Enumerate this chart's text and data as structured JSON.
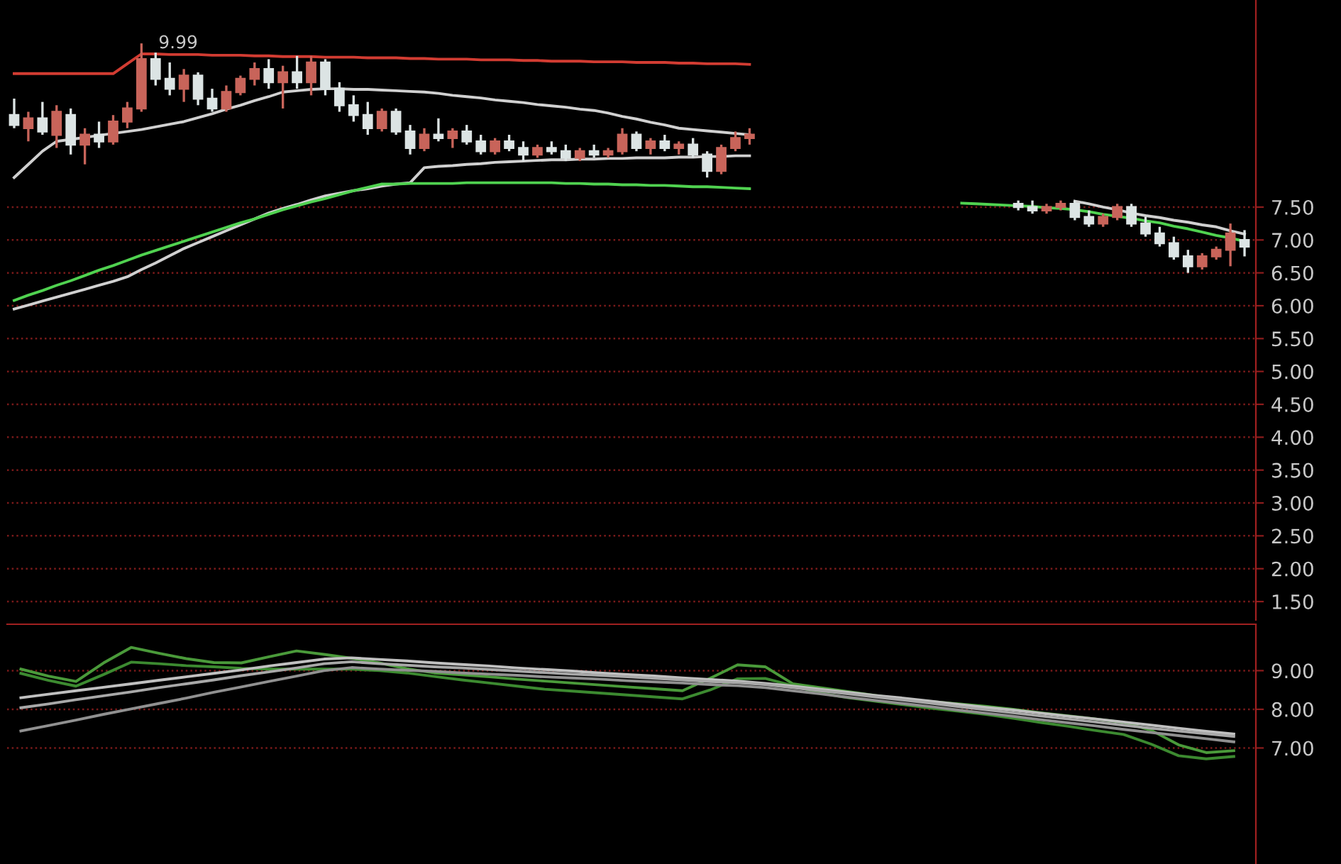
{
  "chart_data": [
    {
      "type": "candlestick",
      "categories": [
        null,
        null,
        null,
        null,
        null,
        null,
        null,
        null,
        null,
        null,
        null,
        null,
        null,
        null,
        null,
        null,
        null,
        null,
        null,
        null,
        null,
        null,
        null,
        null,
        null,
        null,
        null,
        null,
        null,
        null,
        null,
        null,
        null,
        null,
        null,
        null,
        null,
        null,
        null,
        null,
        null,
        null,
        null,
        null,
        null,
        null,
        null,
        null,
        null,
        null,
        null,
        null,
        null,
        null,
        null,
        null,
        null,
        null,
        null,
        null,
        null,
        null,
        null,
        null,
        null,
        null,
        null,
        null,
        null,
        null,
        null,
        null,
        null,
        null,
        null,
        null,
        null,
        null,
        null,
        null,
        null,
        null,
        null,
        null,
        null,
        null,
        null,
        null
      ],
      "ohlc": [
        [
          8.9,
          9.15,
          8.7,
          8.75
        ],
        [
          8.7,
          8.95,
          8.5,
          8.85
        ],
        [
          8.85,
          9.1,
          8.6,
          8.65
        ],
        [
          8.6,
          9.05,
          8.4,
          8.95
        ],
        [
          8.9,
          9.0,
          8.3,
          8.45
        ],
        [
          8.45,
          8.7,
          8.15,
          8.6
        ],
        [
          8.6,
          8.8,
          8.4,
          8.5
        ],
        [
          8.5,
          8.9,
          8.45,
          8.8
        ],
        [
          8.8,
          9.1,
          8.7,
          9.0
        ],
        [
          9.0,
          9.99,
          8.95,
          9.75
        ],
        [
          9.75,
          9.85,
          9.35,
          9.45
        ],
        [
          9.45,
          9.7,
          9.2,
          9.3
        ],
        [
          9.3,
          9.6,
          9.1,
          9.5
        ],
        [
          9.5,
          9.55,
          9.05,
          9.15
        ],
        [
          9.15,
          9.3,
          8.95,
          9.0
        ],
        [
          9.0,
          9.35,
          8.95,
          9.25
        ],
        [
          9.25,
          9.5,
          9.2,
          9.45
        ],
        [
          9.45,
          9.7,
          9.35,
          9.6
        ],
        [
          9.6,
          9.75,
          9.3,
          9.4
        ],
        [
          9.4,
          9.65,
          9.0,
          9.55
        ],
        [
          9.55,
          9.8,
          9.3,
          9.4
        ],
        [
          9.4,
          9.8,
          9.2,
          9.7
        ],
        [
          9.7,
          9.75,
          9.2,
          9.3
        ],
        [
          9.3,
          9.4,
          8.95,
          9.05
        ],
        [
          9.05,
          9.2,
          8.8,
          8.9
        ],
        [
          8.9,
          9.1,
          8.6,
          8.7
        ],
        [
          8.7,
          9.0,
          8.65,
          8.95
        ],
        [
          8.95,
          9.0,
          8.6,
          8.65
        ],
        [
          8.65,
          8.75,
          8.3,
          8.4
        ],
        [
          8.4,
          8.7,
          8.35,
          8.6
        ],
        [
          8.6,
          8.85,
          8.5,
          8.55
        ],
        [
          8.55,
          8.7,
          8.4,
          8.65
        ],
        [
          8.65,
          8.75,
          8.45,
          8.5
        ],
        [
          8.5,
          8.6,
          8.3,
          8.35
        ],
        [
          8.35,
          8.55,
          8.3,
          8.5
        ],
        [
          8.5,
          8.6,
          8.35,
          8.4
        ],
        [
          8.4,
          8.5,
          8.2,
          8.3
        ],
        [
          8.3,
          8.45,
          8.25,
          8.4
        ],
        [
          8.4,
          8.5,
          8.3,
          8.35
        ],
        [
          8.35,
          8.45,
          8.2,
          8.25
        ],
        [
          8.25,
          8.4,
          8.2,
          8.35
        ],
        [
          8.35,
          8.45,
          8.25,
          8.3
        ],
        [
          8.3,
          8.4,
          8.25,
          8.35
        ],
        [
          8.35,
          8.7,
          8.3,
          8.6
        ],
        [
          8.6,
          8.65,
          8.35,
          8.4
        ],
        [
          8.4,
          8.55,
          8.3,
          8.5
        ],
        [
          8.5,
          8.6,
          8.35,
          8.4
        ],
        [
          8.4,
          8.5,
          8.3,
          8.45
        ],
        [
          8.45,
          8.55,
          8.25,
          8.3
        ],
        [
          8.3,
          8.35,
          7.95,
          8.05
        ],
        [
          8.05,
          8.45,
          8.0,
          8.4
        ],
        [
          8.4,
          8.65,
          8.35,
          8.55
        ],
        [
          8.55,
          8.7,
          8.45,
          8.6
        ],
        null,
        null,
        null,
        null,
        null,
        null,
        null,
        null,
        null,
        null,
        null,
        null,
        null,
        null,
        null,
        null,
        null,
        null,
        [
          7.55,
          7.6,
          7.45,
          7.5
        ],
        [
          7.5,
          7.6,
          7.4,
          7.45
        ],
        [
          7.45,
          7.55,
          7.4,
          7.5
        ],
        [
          7.5,
          7.6,
          7.45,
          7.55
        ],
        [
          7.55,
          7.6,
          7.3,
          7.35
        ],
        [
          7.35,
          7.45,
          7.2,
          7.25
        ],
        [
          7.25,
          7.4,
          7.2,
          7.35
        ],
        [
          7.35,
          7.55,
          7.3,
          7.5
        ],
        [
          7.5,
          7.55,
          7.2,
          7.25
        ],
        [
          7.25,
          7.35,
          7.05,
          7.1
        ],
        [
          7.1,
          7.2,
          6.9,
          6.95
        ],
        [
          6.95,
          7.05,
          6.7,
          6.75
        ],
        [
          6.75,
          6.85,
          6.5,
          6.6
        ],
        [
          6.6,
          6.8,
          6.55,
          6.75
        ],
        [
          6.75,
          6.9,
          6.7,
          6.85
        ],
        [
          6.85,
          7.25,
          6.6,
          7.1
        ],
        [
          7.0,
          7.15,
          6.75,
          6.9
        ]
      ],
      "colors": [
        "#dce4e4",
        "#c8645a",
        "#dce4e4",
        "#c8645a",
        "#dce4e4",
        "#c8645a",
        "#dce4e4",
        "#c8645a",
        "#c8645a",
        "#c8645a",
        "#dce4e4",
        "#dce4e4",
        "#c8645a",
        "#dce4e4",
        "#dce4e4",
        "#c8645a",
        "#c8645a",
        "#c8645a",
        "#dce4e4",
        "#c8645a",
        "#dce4e4",
        "#c8645a",
        "#dce4e4",
        "#dce4e4",
        "#dce4e4",
        "#dce4e4",
        "#c8645a",
        "#dce4e4",
        "#dce4e4",
        "#c8645a",
        "#dce4e4",
        "#c8645a",
        "#dce4e4",
        "#dce4e4",
        "#c8645a",
        "#dce4e4",
        "#dce4e4",
        "#c8645a",
        "#dce4e4",
        "#dce4e4",
        "#c8645a",
        "#dce4e4",
        "#c8645a",
        "#c8645a",
        "#dce4e4",
        "#c8645a",
        "#dce4e4",
        "#c8645a",
        "#dce4e4",
        "#dce4e4",
        "#c8645a",
        "#c8645a",
        "#c8645a",
        null,
        null,
        null,
        null,
        null,
        null,
        null,
        null,
        null,
        null,
        null,
        null,
        null,
        null,
        null,
        null,
        null,
        null,
        "#dce4e4",
        "#dce4e4",
        "#c8645a",
        "#c8645a",
        "#dce4e4",
        "#dce4e4",
        "#c8645a",
        "#c8645a",
        "#dce4e4",
        "#dce4e4",
        "#dce4e4",
        "#dce4e4",
        "#dce4e4",
        "#c8645a",
        "#c8645a",
        "#c8645a",
        "#dce4e4"
      ],
      "series": [
        {
          "type": "line",
          "color": "#d23c32",
          "values": [
            9.53,
            9.53,
            9.53,
            9.53,
            9.53,
            9.53,
            9.53,
            9.53,
            9.68,
            9.83,
            9.83,
            9.82,
            9.82,
            9.82,
            9.81,
            9.81,
            9.81,
            9.8,
            9.8,
            9.79,
            9.79,
            9.79,
            9.78,
            9.78,
            9.78,
            9.77,
            9.77,
            9.77,
            9.76,
            9.76,
            9.75,
            9.75,
            9.75,
            9.74,
            9.74,
            9.74,
            9.73,
            9.73,
            9.72,
            9.72,
            9.72,
            9.71,
            9.71,
            9.71,
            9.7,
            9.7,
            9.7,
            9.69,
            9.69,
            9.68,
            9.68,
            9.68,
            9.67,
            null,
            null,
            null,
            null,
            null,
            null,
            null,
            null,
            null,
            null,
            null,
            null,
            null,
            null,
            null,
            null,
            null,
            null,
            null,
            null,
            null,
            null,
            null,
            null,
            null,
            null,
            null,
            null,
            null,
            null,
            null,
            null,
            null,
            null,
            null
          ]
        },
        {
          "type": "line",
          "color": "#d0d0d0",
          "values": [
            7.95,
            8.15,
            8.35,
            8.5,
            8.53,
            8.56,
            8.59,
            8.62,
            8.65,
            8.68,
            8.72,
            8.76,
            8.8,
            8.86,
            8.92,
            8.99,
            9.05,
            9.12,
            9.18,
            9.25,
            9.27,
            9.29,
            9.3,
            9.3,
            9.29,
            9.29,
            9.28,
            9.27,
            9.26,
            9.25,
            9.23,
            9.2,
            9.18,
            9.16,
            9.13,
            9.11,
            9.09,
            9.06,
            9.04,
            9.02,
            8.99,
            8.97,
            8.93,
            8.88,
            8.84,
            8.79,
            8.75,
            8.7,
            8.68,
            8.66,
            8.64,
            8.62,
            8.6,
            null,
            null,
            null,
            null,
            null,
            null,
            null,
            null,
            null,
            null,
            null,
            null,
            null,
            null,
            null,
            null,
            null,
            null,
            null,
            null,
            null,
            null,
            null,
            null,
            null,
            null,
            null,
            null,
            null,
            null,
            null,
            null,
            null,
            null,
            null
          ]
        },
        {
          "type": "line",
          "color": "#d0d0d0",
          "values": [
            5.95,
            6.01,
            6.07,
            6.13,
            6.19,
            6.25,
            6.31,
            6.37,
            6.44,
            6.55,
            6.65,
            6.76,
            6.87,
            6.96,
            7.05,
            7.14,
            7.23,
            7.32,
            7.41,
            7.48,
            7.54,
            7.61,
            7.67,
            7.71,
            7.75,
            7.78,
            7.82,
            7.85,
            7.87,
            8.1,
            8.12,
            8.13,
            8.15,
            8.16,
            8.18,
            8.19,
            8.2,
            8.21,
            8.22,
            8.22,
            8.23,
            8.23,
            8.24,
            8.24,
            8.25,
            8.25,
            8.25,
            8.26,
            8.26,
            8.27,
            8.27,
            8.28,
            8.28,
            null,
            null,
            null,
            null,
            null,
            null,
            null,
            null,
            null,
            null,
            null,
            null,
            null,
            null,
            null,
            null,
            null,
            null,
            null,
            null,
            null,
            null,
            7.59,
            7.55,
            7.5,
            7.46,
            7.41,
            7.37,
            7.34,
            7.3,
            7.27,
            7.23,
            7.2,
            7.14,
            7.09
          ]
        },
        {
          "type": "line",
          "color": "#50d250",
          "values": [
            6.08,
            6.16,
            6.23,
            6.31,
            6.38,
            6.46,
            6.54,
            6.61,
            6.69,
            6.77,
            6.84,
            6.91,
            6.98,
            7.05,
            7.12,
            7.19,
            7.26,
            7.32,
            7.39,
            7.46,
            7.52,
            7.58,
            7.63,
            7.69,
            7.75,
            7.8,
            7.85,
            7.85,
            7.86,
            7.86,
            7.86,
            7.86,
            7.87,
            7.87,
            7.87,
            7.87,
            7.87,
            7.87,
            7.87,
            7.86,
            7.86,
            7.85,
            7.85,
            7.84,
            7.84,
            7.83,
            7.83,
            7.82,
            7.81,
            7.81,
            7.8,
            7.79,
            7.78,
            null,
            null,
            null,
            null,
            null,
            null,
            null,
            null,
            null,
            null,
            null,
            null,
            null,
            null,
            7.56,
            7.55,
            7.54,
            7.53,
            7.52,
            7.51,
            7.49,
            7.48,
            7.46,
            7.43,
            7.39,
            7.36,
            7.33,
            7.29,
            7.26,
            7.21,
            7.17,
            7.12,
            7.07,
            7.03,
            6.98
          ]
        }
      ],
      "annotations": [
        "9.99"
      ],
      "ylim": [
        1.22,
        10.65
      ],
      "yticks": [
        {
          "value": 1.5,
          "label": "1.50"
        },
        {
          "value": 2.0,
          "label": "2.00"
        },
        {
          "value": 2.5,
          "label": "2.50"
        },
        {
          "value": 3.0,
          "label": "3.00"
        },
        {
          "value": 3.5,
          "label": "3.50"
        },
        {
          "value": 4.0,
          "label": "4.00"
        },
        {
          "value": 4.5,
          "label": "4.50"
        },
        {
          "value": 5.0,
          "label": "5.00"
        },
        {
          "value": 5.5,
          "label": "5.50"
        },
        {
          "value": 6.0,
          "label": "6.00"
        },
        {
          "value": 6.5,
          "label": "6.50"
        },
        {
          "value": 7.0,
          "label": "7.00"
        },
        {
          "value": 7.5,
          "label": "7.50"
        }
      ],
      "grid": "y",
      "tick_labels": "y"
    },
    {
      "type": "line",
      "categories": [
        null,
        null,
        null,
        null,
        null,
        null,
        null,
        null,
        null,
        null,
        null,
        null,
        null,
        null,
        null,
        null,
        null,
        null,
        null,
        null,
        null,
        null,
        null,
        null,
        null,
        null,
        null,
        null,
        null,
        null,
        null,
        null,
        null,
        null,
        null,
        null,
        null,
        null,
        null,
        null,
        null,
        null,
        null,
        null,
        null
      ],
      "ylim": [
        4.0,
        10.2
      ],
      "yticks": [
        {
          "value": 7,
          "label": "7.00"
        },
        {
          "value": 8,
          "label": "8.00"
        },
        {
          "value": 9,
          "label": "9.00"
        }
      ],
      "series": [
        {
          "color": "#4a9a3a",
          "values": [
            9.04,
            8.86,
            8.72,
            9.2,
            9.6,
            9.45,
            9.31,
            9.21,
            9.2,
            9.36,
            9.51,
            9.42,
            9.32,
            9.2,
            9.05,
            8.94,
            8.89,
            8.84,
            8.78,
            8.73,
            8.68,
            8.63,
            8.58,
            8.53,
            8.48,
            8.8,
            9.15,
            9.1,
            8.66,
            8.56,
            8.46,
            8.36,
            8.26,
            8.2,
            8.14,
            8.08,
            8.0,
            7.91,
            7.83,
            7.75,
            7.66,
            7.46,
            7.08,
            6.88,
            6.93
          ]
        },
        {
          "color": "#3c8a30",
          "values": [
            8.93,
            8.75,
            8.6,
            8.9,
            9.22,
            9.18,
            9.13,
            9.1,
            9.06,
            9.04,
            9.04,
            9.04,
            9.04,
            9.0,
            8.94,
            8.85,
            8.76,
            8.68,
            8.6,
            8.52,
            8.47,
            8.42,
            8.37,
            8.32,
            8.27,
            8.5,
            8.79,
            8.8,
            8.61,
            8.42,
            8.3,
            8.21,
            8.12,
            8.03,
            7.95,
            7.87,
            7.77,
            7.66,
            7.56,
            7.45,
            7.35,
            7.1,
            6.8,
            6.72,
            6.78
          ]
        },
        {
          "color": "#c0c0c0",
          "values": [
            8.3,
            8.39,
            8.48,
            8.57,
            8.66,
            8.75,
            8.84,
            8.93,
            9.02,
            9.12,
            9.21,
            9.3,
            9.33,
            9.29,
            9.25,
            9.2,
            9.16,
            9.12,
            9.07,
            9.03,
            8.99,
            8.94,
            8.9,
            8.86,
            8.81,
            8.77,
            8.73,
            8.67,
            8.6,
            8.52,
            8.44,
            8.36,
            8.29,
            8.21,
            8.13,
            8.05,
            7.98,
            7.9,
            7.82,
            7.75,
            7.67,
            7.59,
            7.51,
            7.43,
            7.36
          ]
        },
        {
          "color": "#a8a8a8",
          "values": [
            8.04,
            8.14,
            8.25,
            8.35,
            8.45,
            8.56,
            8.66,
            8.76,
            8.87,
            8.97,
            9.07,
            9.18,
            9.23,
            9.18,
            9.14,
            9.1,
            9.07,
            9.03,
            8.99,
            8.95,
            8.91,
            8.88,
            8.84,
            8.8,
            8.76,
            8.72,
            8.69,
            8.64,
            8.56,
            8.48,
            8.4,
            8.32,
            8.24,
            8.16,
            8.07,
            7.99,
            7.91,
            7.83,
            7.75,
            7.67,
            7.59,
            7.51,
            7.44,
            7.37,
            7.3
          ]
        },
        {
          "color": "#909090",
          "values": [
            7.44,
            7.58,
            7.72,
            7.87,
            8.01,
            8.15,
            8.29,
            8.44,
            8.58,
            8.72,
            8.86,
            9.0,
            9.08,
            9.04,
            9.01,
            8.98,
            8.94,
            8.91,
            8.88,
            8.84,
            8.81,
            8.78,
            8.74,
            8.71,
            8.68,
            8.64,
            8.61,
            8.56,
            8.48,
            8.4,
            8.31,
            8.23,
            8.15,
            8.07,
            7.98,
            7.9,
            7.82,
            7.73,
            7.65,
            7.57,
            7.48,
            7.4,
            7.32,
            7.24,
            7.16
          ]
        }
      ],
      "grid": "y",
      "tick_labels": "y"
    }
  ]
}
